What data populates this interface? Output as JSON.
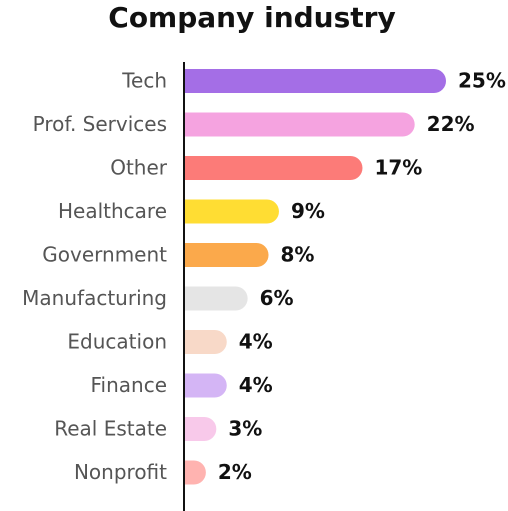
{
  "chart_data": {
    "type": "bar",
    "orientation": "horizontal",
    "title": "Company industry",
    "categories": [
      "Tech",
      "Prof. Services",
      "Other",
      "Healthcare",
      "Government",
      "Manufacturing",
      "Education",
      "Finance",
      "Real Estate",
      "Nonprofit"
    ],
    "values": [
      25,
      22,
      17,
      9,
      8,
      6,
      4,
      4,
      3,
      2
    ],
    "value_labels": [
      "25%",
      "22%",
      "17%",
      "9%",
      "8%",
      "6%",
      "4%",
      "4%",
      "3%",
      "2%"
    ],
    "colors": [
      "#a46ee6",
      "#f5a3e0",
      "#fc7b78",
      "#ffdd33",
      "#fba94b",
      "#e5e5e5",
      "#f8d9c8",
      "#d4b5f5",
      "#f8c9ea",
      "#ffb3b0"
    ]
  }
}
